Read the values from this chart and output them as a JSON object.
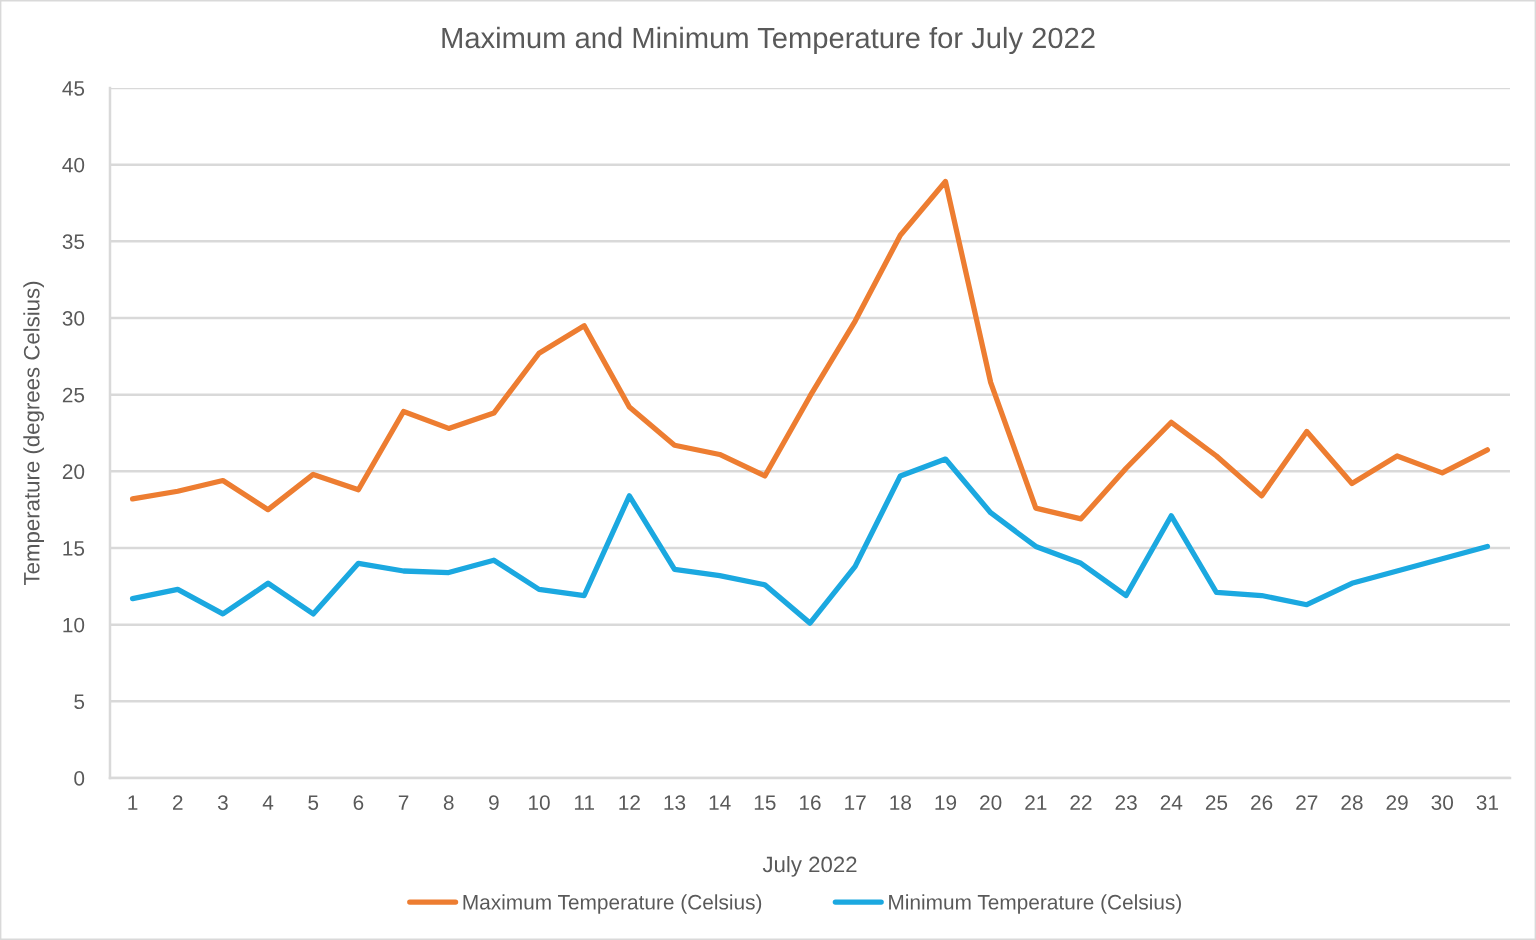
{
  "chart_data": {
    "type": "line",
    "title": "Maximum and Minimum Temperature for July 2022",
    "xlabel": "July 2022",
    "ylabel": "Temperature (degrees Celsius)",
    "categories": [
      "1",
      "2",
      "3",
      "4",
      "5",
      "6",
      "7",
      "8",
      "9",
      "10",
      "11",
      "12",
      "13",
      "14",
      "15",
      "16",
      "17",
      "18",
      "19",
      "20",
      "21",
      "22",
      "23",
      "24",
      "25",
      "26",
      "27",
      "28",
      "29",
      "30",
      "31"
    ],
    "series": [
      {
        "name": "Maximum Temperature (Celsius)",
        "color": "#ed7d31",
        "values": [
          18.2,
          18.7,
          19.4,
          17.5,
          19.8,
          18.8,
          23.9,
          22.8,
          23.8,
          27.7,
          29.5,
          24.2,
          21.7,
          21.1,
          19.7,
          24.9,
          29.8,
          35.4,
          38.9,
          25.8,
          17.6,
          16.9,
          20.2,
          23.2,
          21.0,
          18.4,
          22.6,
          19.2,
          21.0,
          19.9,
          21.4
        ]
      },
      {
        "name": "Minimum Temperature (Celsius)",
        "color": "#1ba8e0",
        "values": [
          11.7,
          12.3,
          10.7,
          12.7,
          10.7,
          14.0,
          13.5,
          13.4,
          14.2,
          12.3,
          11.9,
          18.4,
          13.6,
          13.2,
          12.6,
          10.1,
          13.8,
          19.7,
          20.8,
          17.3,
          15.1,
          14.0,
          11.9,
          17.1,
          12.1,
          11.9,
          11.3,
          12.7,
          13.5,
          14.3,
          15.1
        ]
      }
    ],
    "ylim": [
      0,
      45
    ],
    "yticks": [
      0,
      5,
      10,
      15,
      20,
      25,
      30,
      35,
      40,
      45
    ],
    "grid": "y",
    "legend": "bottom",
    "line_style": "solid"
  }
}
